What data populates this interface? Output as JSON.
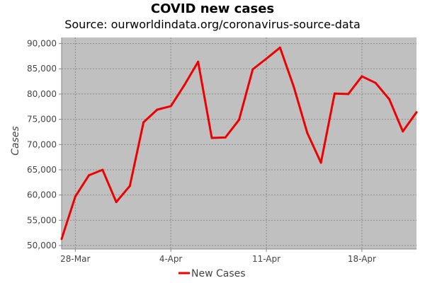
{
  "chart_data": {
    "type": "line",
    "title": "COVID new cases",
    "subtitle": "Source: ourworldindata.org/coronavirus-source-data",
    "xlabel": "",
    "ylabel": "Cases",
    "x_tick_labels": [
      "28-Mar",
      "4-Apr",
      "11-Apr",
      "18-Apr"
    ],
    "y_tick_labels": [
      "50,000",
      "55,000",
      "60,000",
      "65,000",
      "70,000",
      "75,000",
      "80,000",
      "85,000",
      "90,000"
    ],
    "y_ticks": [
      50000,
      55000,
      60000,
      65000,
      70000,
      75000,
      80000,
      85000,
      90000
    ],
    "ylim": [
      49300,
      91200
    ],
    "x": [
      "27-Mar",
      "28-Mar",
      "29-Mar",
      "30-Mar",
      "31-Mar",
      "1-Apr",
      "2-Apr",
      "3-Apr",
      "4-Apr",
      "5-Apr",
      "6-Apr",
      "7-Apr",
      "8-Apr",
      "9-Apr",
      "10-Apr",
      "11-Apr",
      "12-Apr",
      "13-Apr",
      "14-Apr",
      "15-Apr",
      "16-Apr",
      "17-Apr",
      "18-Apr",
      "19-Apr",
      "20-Apr",
      "21-Apr",
      "22-Apr"
    ],
    "series": [
      {
        "name": "New Cases",
        "color": "#ee0000",
        "values": [
          51300,
          59700,
          63900,
          65000,
          58600,
          61800,
          74400,
          76900,
          77600,
          81800,
          86400,
          71300,
          71400,
          74900,
          84900,
          87000,
          89200,
          81500,
          72300,
          66400,
          80100,
          80000,
          83500,
          82200,
          79000,
          72600,
          76400
        ]
      }
    ],
    "grid": true,
    "legend_position": "bottom",
    "plot_background": "#c0c0c0"
  }
}
